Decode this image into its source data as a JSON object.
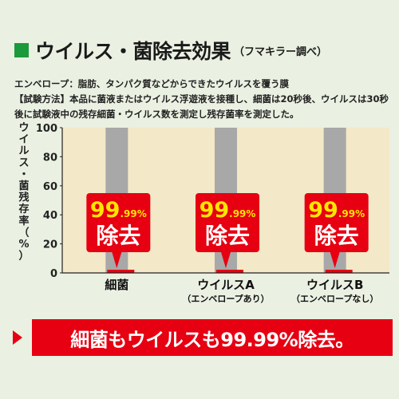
{
  "title": {
    "main": "ウイルス・菌除去効果",
    "note": "（フマキラー調べ）",
    "accent_color": "#1a9a3a"
  },
  "description": {
    "envelope_term": "エンベロープ",
    "envelope_text": "：脂肪、タンパク質などからできたウイルスを覆う膜",
    "method_term": "【試験方法】",
    "method_text": "本品に菌液またはウイルス浮遊液を接種し、細菌は20秒後、ウイルスは30秒後に試験液中の残存細菌・ウイルス数を測定し残存菌率を測定した。"
  },
  "chart_data": {
    "type": "bar",
    "ylabel": "ウイルス・菌残存率（%）",
    "ylim": [
      0,
      100
    ],
    "yticks": [
      "0",
      "20",
      "40",
      "60",
      "80",
      "100"
    ],
    "categories": [
      {
        "name": "細菌",
        "sub": ""
      },
      {
        "name": "ウイルスA",
        "sub": "（エンベロープあり）"
      },
      {
        "name": "ウイルスB",
        "sub": "（エンベロープなし）"
      }
    ],
    "values": [
      0.01,
      0.01,
      0.01
    ],
    "control_value": 100,
    "callouts": [
      {
        "big": "99",
        "small": ".99%",
        "label": "除去"
      },
      {
        "big": "99",
        "small": ".99%",
        "label": "除去"
      },
      {
        "big": "99",
        "small": ".99%",
        "label": "除去"
      }
    ],
    "colors": {
      "control_bar": "#a8a8a8",
      "plot_bg": "#f3e8c8",
      "result_bar": "#e60012",
      "callout_bg": "#e60012",
      "callout_number": "#ffe600",
      "callout_label": "#ffffff"
    }
  },
  "banner": {
    "text": "細菌もウイルスも99.99%除去。",
    "color": "#e60012"
  }
}
